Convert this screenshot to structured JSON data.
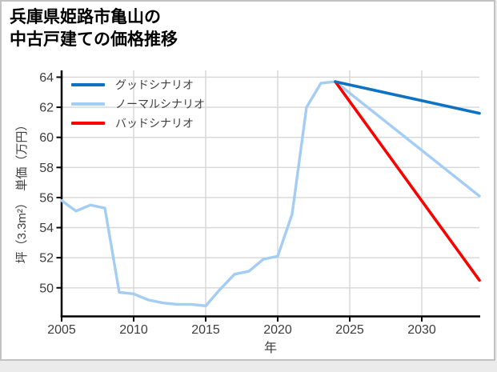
{
  "chart_data": {
    "type": "line",
    "title": "兵庫県姫路市亀山の中古戸建ての価格推移",
    "title_lines": [
      "兵庫県姫路市亀山の",
      "中古戸建ての価格推移"
    ],
    "xlabel": "年",
    "ylabel": "坪（3.3m²）　単価（万円）",
    "xlim": [
      2005,
      2034
    ],
    "ylim": [
      48.1,
      64.45
    ],
    "xticks": [
      2005,
      2010,
      2015,
      2020,
      2025,
      2030
    ],
    "yticks": [
      50,
      52,
      54,
      56,
      58,
      60,
      62,
      64
    ],
    "grid": true,
    "legend_position": "upper left",
    "series": [
      {
        "name": "グッドシナリオ",
        "color": "#0d72c2",
        "x": [
          2024,
          2034
        ],
        "values": [
          63.7,
          61.6
        ]
      },
      {
        "name": "ノーマルシナリオ",
        "color": "#a3cdf2",
        "x": [
          2005,
          2006,
          2007,
          2008,
          2009,
          2010,
          2011,
          2012,
          2013,
          2014,
          2015,
          2016,
          2017,
          2018,
          2019,
          2020,
          2021,
          2022,
          2023,
          2024,
          2034
        ],
        "values": [
          55.8,
          55.1,
          55.5,
          55.3,
          49.7,
          49.6,
          49.2,
          49.0,
          48.9,
          48.9,
          48.8,
          49.9,
          50.9,
          51.1,
          51.9,
          52.1,
          54.9,
          62.0,
          63.6,
          63.7,
          56.1
        ]
      },
      {
        "name": "バッドシナリオ",
        "color": "#fa0000",
        "x": [
          2024,
          2034
        ],
        "values": [
          63.7,
          50.5
        ]
      }
    ]
  },
  "colors": {
    "grid": "#d6d6d6",
    "axis": "#000000",
    "tick_label": "#3d3d3d",
    "legend_text": "#3f3f3f",
    "title": "#000000",
    "card_border": "#c2c2c2",
    "page_background": "#ebebeb"
  }
}
